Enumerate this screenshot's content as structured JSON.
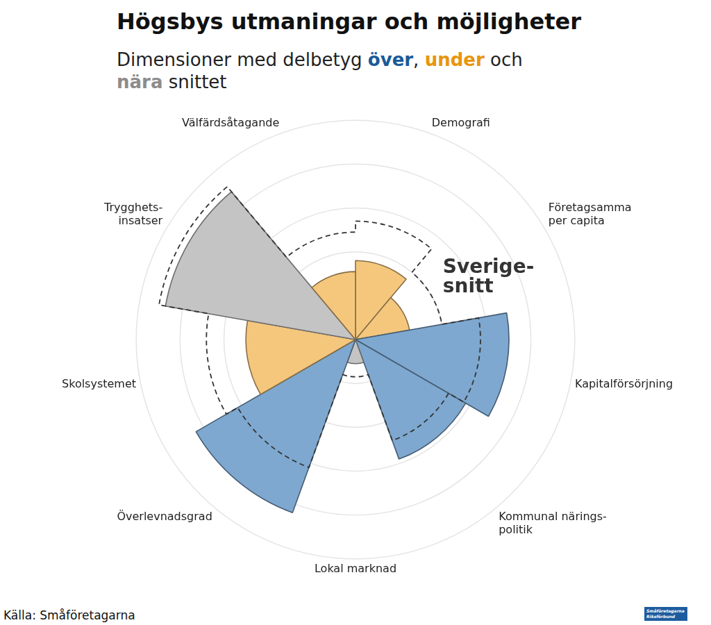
{
  "chart_data": {
    "type": "polarArea",
    "title": "Högsbys utmaningar och möjligheter",
    "subtitle": [
      {
        "text": "Dimensioner med delbetyg "
      },
      {
        "text": "över",
        "color": "#1a5a9a"
      },
      {
        "text": ", "
      },
      {
        "text": "under",
        "color": "#e8950e"
      },
      {
        "text": " och "
      },
      {
        "text": "nära",
        "color": "#8c8c8c"
      },
      {
        "text": " snittet"
      }
    ],
    "categories": [
      "Demografi",
      "Företagsamma\nper capita",
      "Kapitalförsörjning",
      "Kommunal närings-\npolitik",
      "Lokal marknad",
      "Överlevnadsgrad",
      "Skolsystemet",
      "Trygghets-\ninsatser",
      "Välfärdsåtagande"
    ],
    "values": [
      36,
      25,
      70,
      58,
      11,
      84,
      50,
      88,
      31
    ],
    "colors": [
      "#f4c77d",
      "#f4c77d",
      "#7ea8cf",
      "#7ea8cf",
      "#c4c4c4",
      "#7ea8cf",
      "#f4c77d",
      "#c4c4c4",
      "#f4c77d"
    ],
    "reference_values": [
      54,
      40,
      57,
      49,
      17,
      62,
      68,
      91,
      49
    ],
    "annotation": "Sverige-\nsnitt",
    "ylim": [
      0,
      100
    ],
    "yticks": [
      0,
      20,
      40,
      60,
      80,
      100
    ],
    "grid": true,
    "tick_labels": false,
    "source": "Källa: Småföretagarna",
    "logo": "Småföretagarna\nRiksförbund"
  }
}
